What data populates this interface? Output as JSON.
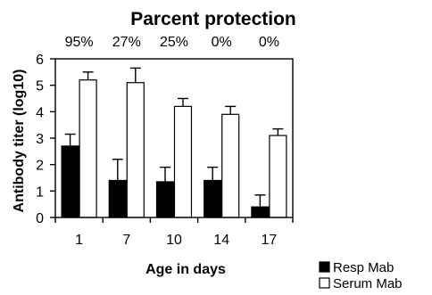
{
  "chart_data": {
    "type": "bar",
    "title": "Parcent protection",
    "categories": [
      "1",
      "7",
      "10",
      "14",
      "17"
    ],
    "protection_labels": [
      "95%",
      "27%",
      "25%",
      "0%",
      "0%"
    ],
    "series": [
      {
        "name": "Resp Mab",
        "values": [
          2.7,
          1.4,
          1.35,
          1.4,
          0.4
        ],
        "errors": [
          0.45,
          0.8,
          0.55,
          0.5,
          0.45
        ],
        "color": "#000000"
      },
      {
        "name": "Serum Mab",
        "values": [
          5.2,
          5.1,
          4.2,
          3.9,
          3.1
        ],
        "errors": [
          0.3,
          0.55,
          0.3,
          0.3,
          0.25
        ],
        "color": "#ffffff"
      }
    ],
    "xlabel": "Age in days",
    "ylabel": "Antibody titer (log10)",
    "ylim": [
      0,
      6
    ],
    "yticks": [
      "0",
      "1",
      "2",
      "3",
      "4",
      "5",
      "6"
    ],
    "grid": false,
    "legend_position": "bottom-right"
  }
}
